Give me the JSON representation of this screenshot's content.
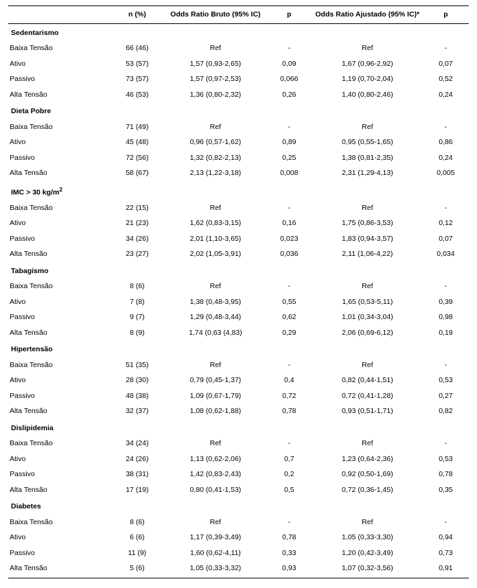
{
  "columns": {
    "c0": "",
    "c1": "n (%)",
    "c2": "Odds Ratio Bruto (95% IC)",
    "c3": "p",
    "c4": "Odds Ratio Ajustado (95% IC)*",
    "c5": "p"
  },
  "groups": [
    {
      "title": "Sedentarismo",
      "rows": [
        {
          "label": "Baixa Tensão",
          "n": "66 (46)",
          "orb": "Ref",
          "pb": "-",
          "ora": "Ref",
          "pa": "-"
        },
        {
          "label": "Ativo",
          "n": "53 (57)",
          "orb": "1,57 (0,93-2,65)",
          "pb": "0,09",
          "ora": "1,67 (0,96-2,92)",
          "pa": "0,07"
        },
        {
          "label": "Passivo",
          "n": "73 (57)",
          "orb": "1,57 (0,97-2,53)",
          "pb": "0,066",
          "ora": "1,19 (0,70-2,04)",
          "pa": "0,52"
        },
        {
          "label": "Alta Tensão",
          "n": "46 (53)",
          "orb": "1,36 (0,80-2,32)",
          "pb": "0,26",
          "ora": "1,40 (0,80-2,46)",
          "pa": "0,24"
        }
      ]
    },
    {
      "title": "Dieta Pobre",
      "rows": [
        {
          "label": "Baixa Tensão",
          "n": "71 (49)",
          "orb": "Ref",
          "pb": "-",
          "ora": "Ref",
          "pa": "-"
        },
        {
          "label": "Ativo",
          "n": "45 (48)",
          "orb": "0,96 (0,57-1,62)",
          "pb": "0,89",
          "ora": "0,95 (0,55-1,65)",
          "pa": "0,86"
        },
        {
          "label": "Passivo",
          "n": "72 (56)",
          "orb": "1,32 (0,82-2,13)",
          "pb": "0,25",
          "ora": "1,38 (0,81-2,35)",
          "pa": "0,24"
        },
        {
          "label": "Alta Tensão",
          "n": "58 (67)",
          "orb": "2,13 (1,22-3,18)",
          "pb": "0,008",
          "ora": "2,31 (1,29-4,13)",
          "pa": "0,005"
        }
      ]
    },
    {
      "title_html": "IMC > 30 kg/m<sup>2</sup>",
      "title": "IMC > 30 kg/m2",
      "rows": [
        {
          "label": "Baixa Tensão",
          "n": "22 (15)",
          "orb": "Ref",
          "pb": "-",
          "ora": "Ref",
          "pa": "-"
        },
        {
          "label": "Ativo",
          "n": "21 (23)",
          "orb": "1,62 (0,83-3,15)",
          "pb": "0,16",
          "ora": "1,75 (0,86-3,53)",
          "pa": "0,12"
        },
        {
          "label": "Passivo",
          "n": "34 (26)",
          "orb": "2,01 (1,10-3,65)",
          "pb": "0,023",
          "ora": "1,83 (0,94-3,57)",
          "pa": "0,07"
        },
        {
          "label": "Alta Tensão",
          "n": "23 (27)",
          "orb": "2,02 (1,05-3,91)",
          "pb": "0,036",
          "ora": "2,11 (1,06-4,22)",
          "pa": "0,034"
        }
      ]
    },
    {
      "title": "Tabagismo",
      "rows": [
        {
          "label": "Baixa Tensão",
          "n": "8 (6)",
          "orb": "Ref",
          "pb": "-",
          "ora": "Ref",
          "pa": "-"
        },
        {
          "label": "Ativo",
          "n": "7 (8)",
          "orb": "1,38 (0,48-3,95)",
          "pb": "0,55",
          "ora": "1,65 (0,53-5,11)",
          "pa": "0,39"
        },
        {
          "label": "Passivo",
          "n": "9 (7)",
          "orb": "1,29 (0,48-3,44)",
          "pb": "0,62",
          "ora": "1,01 (0,34-3,04)",
          "pa": "0,98"
        },
        {
          "label": "Alta Tensão",
          "n": "8 (9)",
          "orb": "1,74 (0,63 (4,83)",
          "pb": "0,29",
          "ora": "2,06 (0,69-6,12)",
          "pa": "0,19"
        }
      ]
    },
    {
      "title": "Hipertensão",
      "rows": [
        {
          "label": "Baixa Tensão",
          "n": "51 (35)",
          "orb": "Ref",
          "pb": "-",
          "ora": "Ref",
          "pa": "-"
        },
        {
          "label": "Ativo",
          "n": "28 (30)",
          "orb": "0,79 (0,45-1,37)",
          "pb": "0,4",
          "ora": "0,82 (0,44-1,51)",
          "pa": "0,53"
        },
        {
          "label": "Passivo",
          "n": "48 (38)",
          "orb": "1,09 (0,67-1,79)",
          "pb": "0,72",
          "ora": "0,72 (0,41-1,28)",
          "pa": "0,27"
        },
        {
          "label": "Alta Tensão",
          "n": "32 (37)",
          "orb": "1,08 (0,62-1,88)",
          "pb": "0,78",
          "ora": "0,93 (0,51-1,71)",
          "pa": "0,82"
        }
      ]
    },
    {
      "title": "Dislipidemia",
      "rows": [
        {
          "label": "Baixa Tensão",
          "n": "34 (24)",
          "orb": "Ref",
          "pb": "-",
          "ora": "Ref",
          "pa": "-"
        },
        {
          "label": "Ativo",
          "n": "24 (26)",
          "orb": "1,13 (0,62-2,06)",
          "pb": "0,7",
          "ora": "1,23 (0,64-2,36)",
          "pa": "0,53"
        },
        {
          "label": "Passivo",
          "n": "38 (31)",
          "orb": "1,42 (0,83-2,43)",
          "pb": "0,2",
          "ora": "0,92 (0,50-1,69)",
          "pa": "0,78"
        },
        {
          "label": "Alta Tensão",
          "n": "17 (19)",
          "orb": "0,80 (0,41-1,53)",
          "pb": "0,5",
          "ora": "0,72 (0,36-1,45)",
          "pa": "0,35"
        }
      ]
    },
    {
      "title": "Diabetes",
      "rows": [
        {
          "label": "Baixa Tensão",
          "n": "8 (6)",
          "orb": "Ref",
          "pb": "-",
          "ora": "Ref",
          "pa": "-"
        },
        {
          "label": "Ativo",
          "n": "6 (6)",
          "orb": "1,17 (0,39-3,49)",
          "pb": "0,78",
          "ora": "1,05 (0,33-3,30)",
          "pa": "0,94"
        },
        {
          "label": "Passivo",
          "n": "11 (9)",
          "orb": "1,60 (0,62-4,11)",
          "pb": "0,33",
          "ora": "1,20 (0,42-3,49)",
          "pa": "0,73"
        },
        {
          "label": "Alta Tensão",
          "n": "5 (6)",
          "orb": "1,05 (0,33-3,32)",
          "pb": "0,93",
          "ora": "1,07 (0,32-3,56)",
          "pa": "0,91"
        }
      ]
    }
  ]
}
